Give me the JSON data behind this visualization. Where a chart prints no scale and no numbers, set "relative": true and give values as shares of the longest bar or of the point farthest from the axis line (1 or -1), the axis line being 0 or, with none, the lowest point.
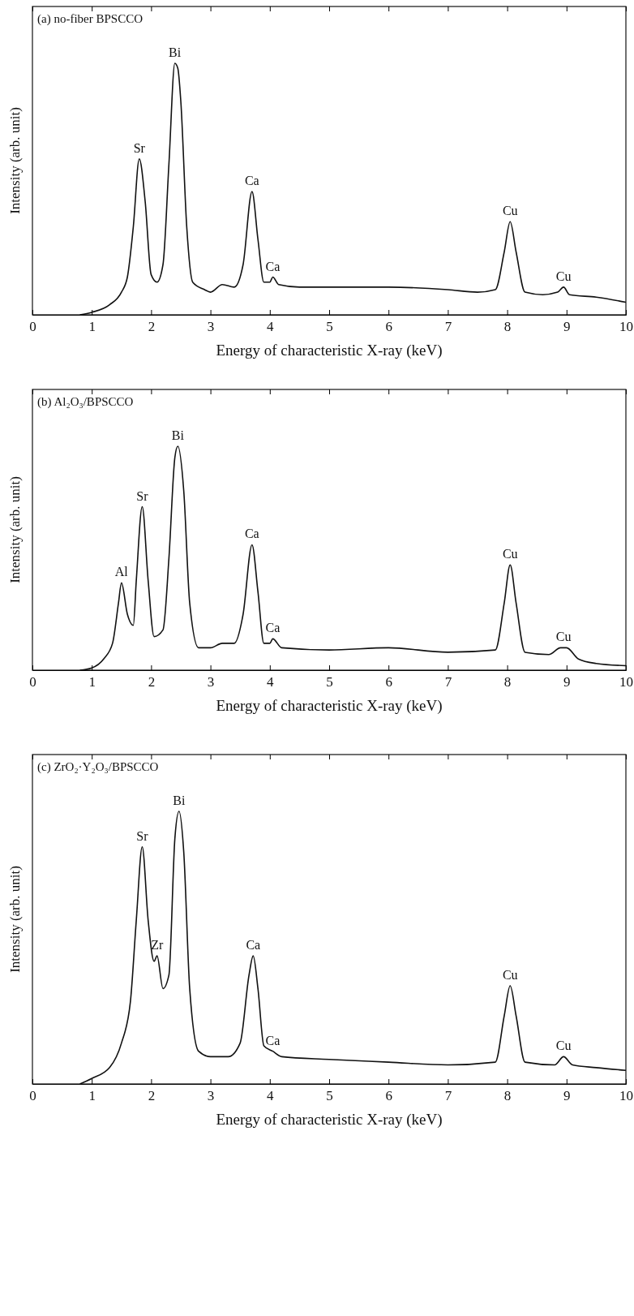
{
  "chart_data": [
    {
      "type": "line",
      "title": "(a) no-fiber BPSCCO",
      "xlabel": "Energy of characteristic X-ray (keV)",
      "ylabel": "Intensity (arb. unit)",
      "relative": true,
      "xlim": [
        0,
        10
      ],
      "xticks": [
        0,
        1,
        2,
        3,
        4,
        5,
        6,
        7,
        8,
        9,
        10
      ],
      "grid": false,
      "line_style": "solid",
      "series": [
        {
          "color": "#111111",
          "x": [
            0.8,
            1.0,
            1.3,
            1.5,
            1.6,
            1.7,
            1.8,
            1.9,
            2.0,
            2.1,
            2.2,
            2.3,
            2.4,
            2.45,
            2.5,
            2.6,
            2.7,
            2.9,
            3.0,
            3.2,
            3.4,
            3.55,
            3.7,
            3.8,
            3.9,
            4.0,
            4.05,
            4.15,
            4.5,
            5,
            6,
            7,
            7.5,
            7.8,
            7.95,
            8.05,
            8.15,
            8.3,
            8.6,
            8.85,
            8.95,
            9.05,
            9.5,
            10
          ],
          "values": [
            0,
            0.01,
            0.04,
            0.09,
            0.15,
            0.35,
            0.62,
            0.45,
            0.16,
            0.13,
            0.2,
            0.6,
            1.0,
            0.98,
            0.85,
            0.35,
            0.13,
            0.1,
            0.09,
            0.12,
            0.11,
            0.2,
            0.49,
            0.3,
            0.13,
            0.13,
            0.15,
            0.12,
            0.11,
            0.11,
            0.11,
            0.1,
            0.09,
            0.1,
            0.25,
            0.37,
            0.25,
            0.09,
            0.08,
            0.09,
            0.11,
            0.08,
            0.07,
            0.05
          ]
        }
      ],
      "annotations": [
        {
          "text": "Sr",
          "x": 1.8,
          "y": 0.62
        },
        {
          "text": "Bi",
          "x": 2.4,
          "y": 1.0
        },
        {
          "text": "Ca",
          "x": 3.7,
          "y": 0.49
        },
        {
          "text": "Ca",
          "x": 4.05,
          "y": 0.15
        },
        {
          "text": "Cu",
          "x": 8.05,
          "y": 0.37
        },
        {
          "text": "Cu",
          "x": 8.95,
          "y": 0.11
        }
      ]
    },
    {
      "type": "line",
      "title": "(b) Al₂O₃/BPSCCO",
      "xlabel": "Energy of characteristic X-ray (keV)",
      "ylabel": "Intensity (arb. unit)",
      "relative": true,
      "xlim": [
        0,
        10
      ],
      "xticks": [
        0,
        1,
        2,
        3,
        4,
        5,
        6,
        7,
        8,
        9,
        10
      ],
      "grid": false,
      "line_style": "solid",
      "series": [
        {
          "color": "#111111",
          "x": [
            0.8,
            1.0,
            1.2,
            1.35,
            1.45,
            1.5,
            1.6,
            1.7,
            1.75,
            1.85,
            1.95,
            2.05,
            2.2,
            2.3,
            2.4,
            2.45,
            2.55,
            2.65,
            2.8,
            3.0,
            3.2,
            3.4,
            3.55,
            3.7,
            3.8,
            3.9,
            4.0,
            4.05,
            4.2,
            5,
            6,
            7,
            7.8,
            7.95,
            8.05,
            8.15,
            8.3,
            8.7,
            8.9,
            9.0,
            9.2,
            9.5,
            10
          ],
          "values": [
            0,
            0.01,
            0.05,
            0.12,
            0.3,
            0.39,
            0.25,
            0.2,
            0.4,
            0.73,
            0.4,
            0.15,
            0.18,
            0.5,
            0.95,
            1.0,
            0.8,
            0.3,
            0.1,
            0.1,
            0.12,
            0.12,
            0.25,
            0.56,
            0.35,
            0.12,
            0.12,
            0.14,
            0.1,
            0.09,
            0.1,
            0.08,
            0.09,
            0.3,
            0.47,
            0.3,
            0.08,
            0.07,
            0.1,
            0.1,
            0.05,
            0.03,
            0.02
          ]
        }
      ],
      "annotations": [
        {
          "text": "Al",
          "x": 1.5,
          "y": 0.39
        },
        {
          "text": "Sr",
          "x": 1.85,
          "y": 0.73
        },
        {
          "text": "Bi",
          "x": 2.45,
          "y": 1.0
        },
        {
          "text": "Ca",
          "x": 3.7,
          "y": 0.56
        },
        {
          "text": "Ca",
          "x": 4.05,
          "y": 0.14
        },
        {
          "text": "Cu",
          "x": 8.05,
          "y": 0.47
        },
        {
          "text": "Cu",
          "x": 8.95,
          "y": 0.1
        }
      ]
    },
    {
      "type": "line",
      "title": "(c) ZrO₂·Y₂O₃/BPSCCO",
      "xlabel": "Energy of characteristic X-ray (keV)",
      "ylabel": "Intensity (arb. unit)",
      "relative": true,
      "xlim": [
        0,
        10
      ],
      "xticks": [
        0,
        1,
        2,
        3,
        4,
        5,
        6,
        7,
        8,
        9,
        10
      ],
      "grid": false,
      "line_style": "solid",
      "series": [
        {
          "color": "#111111",
          "x": [
            0.8,
            1.0,
            1.3,
            1.5,
            1.65,
            1.75,
            1.85,
            1.95,
            2.05,
            2.1,
            2.2,
            2.3,
            2.4,
            2.47,
            2.55,
            2.65,
            2.8,
            3.0,
            3.3,
            3.5,
            3.65,
            3.72,
            3.8,
            3.9,
            4.05,
            4.2,
            5,
            6,
            7,
            7.8,
            7.95,
            8.05,
            8.15,
            8.3,
            8.8,
            8.95,
            9.1,
            9.5,
            10
          ],
          "values": [
            0,
            0.02,
            0.06,
            0.15,
            0.3,
            0.6,
            0.87,
            0.6,
            0.45,
            0.47,
            0.35,
            0.4,
            0.9,
            1.0,
            0.85,
            0.35,
            0.12,
            0.1,
            0.1,
            0.15,
            0.4,
            0.47,
            0.35,
            0.14,
            0.12,
            0.1,
            0.09,
            0.08,
            0.07,
            0.08,
            0.25,
            0.36,
            0.25,
            0.08,
            0.07,
            0.1,
            0.07,
            0.06,
            0.05
          ]
        }
      ],
      "annotations": [
        {
          "text": "Sr",
          "x": 1.85,
          "y": 0.87
        },
        {
          "text": "Zr",
          "x": 2.1,
          "y": 0.47
        },
        {
          "text": "Bi",
          "x": 2.47,
          "y": 1.0
        },
        {
          "text": "Ca",
          "x": 3.72,
          "y": 0.47
        },
        {
          "text": "Ca",
          "x": 4.05,
          "y": 0.12
        },
        {
          "text": "Cu",
          "x": 8.05,
          "y": 0.36
        },
        {
          "text": "Cu",
          "x": 8.95,
          "y": 0.1
        }
      ]
    }
  ]
}
